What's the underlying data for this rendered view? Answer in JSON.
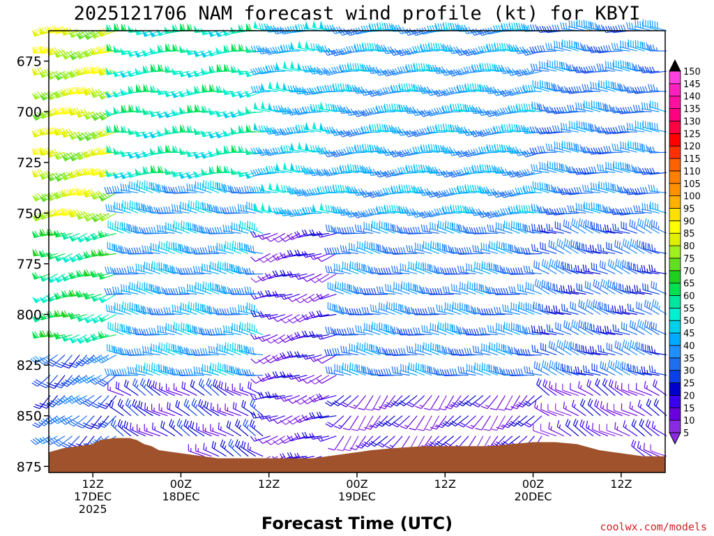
{
  "chart_data": {
    "type": "wind-barb-profile",
    "title": "2025121706 NAM forecast wind profile (kt) for KBYI",
    "xlabel": "Forecast Time (UTC)",
    "credit": "coolwx.com/models",
    "y_axis": {
      "quantity": "pressure (hPa)",
      "range": [
        660,
        878
      ],
      "inverted": true,
      "ticks": [
        675,
        700,
        725,
        750,
        775,
        800,
        825,
        850,
        875
      ]
    },
    "x_axis": {
      "range_hours": [
        0,
        84
      ],
      "ticks": [
        {
          "hour": 6,
          "line1": "12Z",
          "line2": "17DEC",
          "line3": "2025"
        },
        {
          "hour": 18,
          "line1": "00Z",
          "line2": "18DEC",
          "line3": ""
        },
        {
          "hour": 30,
          "line1": "12Z",
          "line2": "",
          "line3": ""
        },
        {
          "hour": 42,
          "line1": "00Z",
          "line2": "19DEC",
          "line3": ""
        },
        {
          "hour": 54,
          "line1": "12Z",
          "line2": "",
          "line3": ""
        },
        {
          "hour": 66,
          "line1": "00Z",
          "line2": "20DEC",
          "line3": ""
        },
        {
          "hour": 78,
          "line1": "12Z",
          "line2": "",
          "line3": ""
        }
      ]
    },
    "colorbar": {
      "levels": [
        5,
        10,
        15,
        20,
        25,
        30,
        35,
        40,
        45,
        50,
        55,
        60,
        65,
        70,
        75,
        80,
        85,
        90,
        95,
        100,
        105,
        110,
        115,
        120,
        125,
        130,
        135,
        140,
        145,
        150
      ],
      "colors": [
        "#8a2be2",
        "#6a00e0",
        "#3a00f0",
        "#0000cd",
        "#0a40e8",
        "#1e6ef0",
        "#1e90ff",
        "#00aaff",
        "#00d0e8",
        "#00f0d0",
        "#00e8a0",
        "#00e050",
        "#20d020",
        "#60e020",
        "#a0f020",
        "#e0f000",
        "#ffff00",
        "#ffe000",
        "#ffb000",
        "#ff9000",
        "#ff8000",
        "#ff6000",
        "#ff3000",
        "#ff0000",
        "#ff0040",
        "#ff0080",
        "#ff10a0",
        "#ff20c0",
        "#ff40e0",
        "#ff00ff"
      ],
      "extend_top_color": "#000000",
      "extend_bottom_color": "#8a2be2"
    },
    "terrain": {
      "color": "#a0522d",
      "surface_pressure_hpa": [
        {
          "hour": 0,
          "p": 868
        },
        {
          "hour": 2,
          "p": 866
        },
        {
          "hour": 4,
          "p": 865
        },
        {
          "hour": 6,
          "p": 864
        },
        {
          "hour": 7,
          "p": 862
        },
        {
          "hour": 9,
          "p": 861
        },
        {
          "hour": 11,
          "p": 861
        },
        {
          "hour": 12,
          "p": 862
        },
        {
          "hour": 13,
          "p": 864
        },
        {
          "hour": 14,
          "p": 865
        },
        {
          "hour": 15,
          "p": 867
        },
        {
          "hour": 17,
          "p": 868
        },
        {
          "hour": 19,
          "p": 869
        },
        {
          "hour": 21,
          "p": 870
        },
        {
          "hour": 23,
          "p": 871
        },
        {
          "hour": 27,
          "p": 871
        },
        {
          "hour": 33,
          "p": 871
        },
        {
          "hour": 36,
          "p": 871
        },
        {
          "hour": 38,
          "p": 870
        },
        {
          "hour": 40,
          "p": 869
        },
        {
          "hour": 42,
          "p": 868
        },
        {
          "hour": 44,
          "p": 867
        },
        {
          "hour": 47,
          "p": 866
        },
        {
          "hour": 51,
          "p": 865
        },
        {
          "hour": 60,
          "p": 865
        },
        {
          "hour": 63,
          "p": 864
        },
        {
          "hour": 66,
          "p": 863
        },
        {
          "hour": 69,
          "p": 863
        },
        {
          "hour": 72,
          "p": 864
        },
        {
          "hour": 73,
          "p": 865
        },
        {
          "hour": 75,
          "p": 867
        },
        {
          "hour": 77,
          "p": 868
        },
        {
          "hour": 79,
          "p": 869
        },
        {
          "hour": 81,
          "p": 870
        },
        {
          "hour": 84,
          "p": 870
        }
      ]
    },
    "barbs": {
      "units": "kt",
      "time_step_hours": 1,
      "hours": [
        0,
        84
      ],
      "pressure_levels": [
        660,
        670,
        680,
        690,
        700,
        710,
        720,
        730,
        740,
        750,
        760,
        770,
        780,
        790,
        800,
        810,
        820,
        830,
        840,
        850,
        860,
        870,
        875
      ],
      "regimes": [
        {
          "hours": [
            0,
            10
          ],
          "p_top": 660,
          "p_bot": 760,
          "speed": 80,
          "dir": 250
        },
        {
          "hours": [
            0,
            10
          ],
          "p_top": 760,
          "p_bot": 820,
          "speed": 60,
          "dir": 250
        },
        {
          "hours": [
            0,
            10
          ],
          "p_top": 820,
          "p_bot": 878,
          "speed": 30,
          "dir": 230
        },
        {
          "hours": [
            10,
            30
          ],
          "p_top": 660,
          "p_bot": 740,
          "speed": 55,
          "dir": 260
        },
        {
          "hours": [
            10,
            30
          ],
          "p_top": 740,
          "p_bot": 840,
          "speed": 40,
          "dir": 280
        },
        {
          "hours": [
            10,
            30
          ],
          "p_top": 840,
          "p_bot": 878,
          "speed": 20,
          "dir": 300
        },
        {
          "hours": [
            30,
            40
          ],
          "p_top": 660,
          "p_bot": 760,
          "speed": 45,
          "dir": 270
        },
        {
          "hours": [
            30,
            40
          ],
          "p_top": 760,
          "p_bot": 878,
          "speed": 15,
          "dir": 250
        },
        {
          "hours": [
            40,
            68
          ],
          "p_top": 660,
          "p_bot": 760,
          "speed": 40,
          "dir": 265
        },
        {
          "hours": [
            40,
            68
          ],
          "p_top": 760,
          "p_bot": 840,
          "speed": 35,
          "dir": 280
        },
        {
          "hours": [
            40,
            68
          ],
          "p_top": 840,
          "p_bot": 878,
          "speed": 15,
          "dir": 220
        },
        {
          "hours": [
            68,
            84
          ],
          "p_top": 660,
          "p_bot": 760,
          "speed": 35,
          "dir": 275
        },
        {
          "hours": [
            68,
            84
          ],
          "p_top": 760,
          "p_bot": 840,
          "speed": 30,
          "dir": 290
        },
        {
          "hours": [
            68,
            84
          ],
          "p_top": 840,
          "p_bot": 878,
          "speed": 15,
          "dir": 300
        }
      ]
    }
  }
}
